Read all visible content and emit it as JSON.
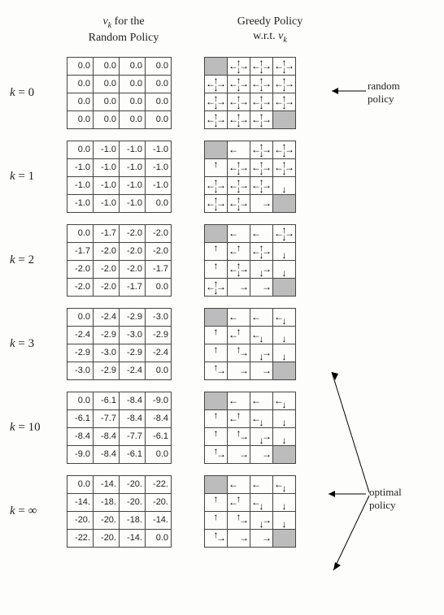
{
  "headers": {
    "left_line1_pre": "",
    "left_line1_var": "v",
    "left_line1_sub": "k",
    "left_line1_post": " for the",
    "left_line2": "Random Policy",
    "right_line1": "Greedy Policy",
    "right_line2_pre": "w.r.t. ",
    "right_line2_var": "v",
    "right_line2_sub": "k"
  },
  "annotations": {
    "random_label1": "random",
    "random_label2": "policy",
    "optimal_label1": "optimal",
    "optimal_label2": "policy"
  },
  "arrow_glyphs": {
    "u": "↑",
    "d": "↓",
    "l": "←",
    "r": "→"
  },
  "grid_colors": {
    "border": "#444444",
    "terminal_fill": "#bcbcbc",
    "background": "#fdfdfb",
    "text": "#222222"
  },
  "cell_size": {
    "value_w": 32,
    "value_h": 22,
    "policy_w": 28,
    "policy_h": 22
  },
  "font_sizes": {
    "header": 14,
    "klabel": 15,
    "cell": 11,
    "annot": 13,
    "arrow": 12
  },
  "iterations": [
    {
      "k_label": "k = 0",
      "values": [
        [
          "0.0",
          "0.0",
          "0.0",
          "0.0"
        ],
        [
          "0.0",
          "0.0",
          "0.0",
          "0.0"
        ],
        [
          "0.0",
          "0.0",
          "0.0",
          "0.0"
        ],
        [
          "0.0",
          "0.0",
          "0.0",
          "0.0"
        ]
      ],
      "policy": [
        [
          "T",
          "udlr",
          "udlr",
          "udlr"
        ],
        [
          "udlr",
          "udlr",
          "udlr",
          "udlr"
        ],
        [
          "udlr",
          "udlr",
          "udlr",
          "udlr"
        ],
        [
          "udlr",
          "udlr",
          "udlr",
          "T"
        ]
      ]
    },
    {
      "k_label": "k = 1",
      "values": [
        [
          "0.0",
          "-1.0",
          "-1.0",
          "-1.0"
        ],
        [
          "-1.0",
          "-1.0",
          "-1.0",
          "-1.0"
        ],
        [
          "-1.0",
          "-1.0",
          "-1.0",
          "-1.0"
        ],
        [
          "-1.0",
          "-1.0",
          "-1.0",
          "0.0"
        ]
      ],
      "policy": [
        [
          "T",
          "l",
          "udlr",
          "udlr"
        ],
        [
          "u",
          "udlr",
          "udlr",
          "udlr"
        ],
        [
          "udlr",
          "udlr",
          "udlr",
          "d"
        ],
        [
          "udlr",
          "udlr",
          "r",
          "T"
        ]
      ]
    },
    {
      "k_label": "k = 2",
      "values": [
        [
          "0.0",
          "-1.7",
          "-2.0",
          "-2.0"
        ],
        [
          "-1.7",
          "-2.0",
          "-2.0",
          "-2.0"
        ],
        [
          "-2.0",
          "-2.0",
          "-2.0",
          "-1.7"
        ],
        [
          "-2.0",
          "-2.0",
          "-1.7",
          "0.0"
        ]
      ],
      "policy": [
        [
          "T",
          "l",
          "l",
          "udlr"
        ],
        [
          "u",
          "ul",
          "udlr",
          "d"
        ],
        [
          "u",
          "udlr",
          "dr",
          "d"
        ],
        [
          "udlr",
          "r",
          "r",
          "T"
        ]
      ]
    },
    {
      "k_label": "k = 3",
      "values": [
        [
          "0.0",
          "-2.4",
          "-2.9",
          "-3.0"
        ],
        [
          "-2.4",
          "-2.9",
          "-3.0",
          "-2.9"
        ],
        [
          "-2.9",
          "-3.0",
          "-2.9",
          "-2.4"
        ],
        [
          "-3.0",
          "-2.9",
          "-2.4",
          "0.0"
        ]
      ],
      "policy": [
        [
          "T",
          "l",
          "l",
          "dl"
        ],
        [
          "u",
          "ul",
          "dl",
          "d"
        ],
        [
          "u",
          "ur",
          "dr",
          "d"
        ],
        [
          "ur",
          "r",
          "r",
          "T"
        ]
      ]
    },
    {
      "k_label": "k = 10",
      "values": [
        [
          "0.0",
          "-6.1",
          "-8.4",
          "-9.0"
        ],
        [
          "-6.1",
          "-7.7",
          "-8.4",
          "-8.4"
        ],
        [
          "-8.4",
          "-8.4",
          "-7.7",
          "-6.1"
        ],
        [
          "-9.0",
          "-8.4",
          "-6.1",
          "0.0"
        ]
      ],
      "policy": [
        [
          "T",
          "l",
          "l",
          "dl"
        ],
        [
          "u",
          "ul",
          "dl",
          "d"
        ],
        [
          "u",
          "ur",
          "dr",
          "d"
        ],
        [
          "ur",
          "r",
          "r",
          "T"
        ]
      ]
    },
    {
      "k_label": "k = ∞",
      "values": [
        [
          "0.0",
          "-14.",
          "-20.",
          "-22."
        ],
        [
          "-14.",
          "-18.",
          "-20.",
          "-20."
        ],
        [
          "-20.",
          "-20.",
          "-18.",
          "-14."
        ],
        [
          "-22.",
          "-20.",
          "-14.",
          "0.0"
        ]
      ],
      "policy": [
        [
          "T",
          "l",
          "l",
          "dl"
        ],
        [
          "u",
          "ul",
          "dl",
          "d"
        ],
        [
          "u",
          "ur",
          "dr",
          "d"
        ],
        [
          "ur",
          "r",
          "r",
          "T"
        ]
      ]
    }
  ]
}
